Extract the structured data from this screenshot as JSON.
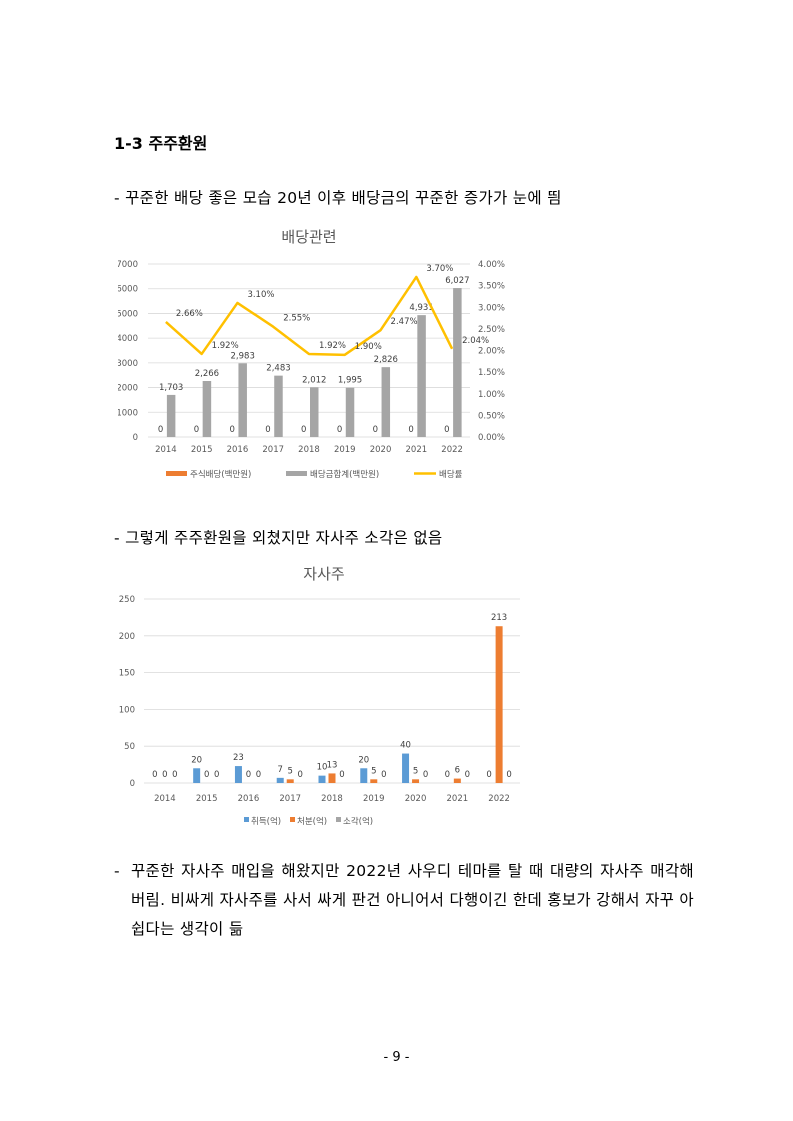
{
  "section_heading": "1-3 주주환원",
  "paragraphs": {
    "p1": "- 꾸준한 배당 좋은 모습 20년 이후 배당금의 꾸준한 증가가 눈에 띔",
    "p2": "- 그렇게 주주환원을 외쳤지만 자사주 소각은 없음",
    "p3_bullet": "-",
    "p3": "꾸준한 자사주 매입을 해왔지만 2022년 사우디 테마를 탈 때 대량의 자사주 매각해버림. 비싸게 자사주를 사서 싸게 판건 아니어서 다행이긴 한데 홍보가 강해서 자꾸 아쉽다는 생각이 듦"
  },
  "page_number": "- 9 -",
  "chart_data": [
    {
      "type": "bar",
      "title": "배당관련",
      "categories": [
        "2014",
        "2015",
        "2016",
        "2017",
        "2018",
        "2019",
        "2020",
        "2021",
        "2022"
      ],
      "ylim": [
        0,
        7000
      ],
      "y_ticks": [
        "0",
        "1000",
        "2000",
        "3000",
        "4000",
        "5000",
        "6000",
        "7000"
      ],
      "y2lim": [
        0,
        4
      ],
      "y2_ticks": [
        "0.00%",
        "0.50%",
        "1.00%",
        "1.50%",
        "2.00%",
        "2.50%",
        "3.00%",
        "3.50%",
        "4.00%"
      ],
      "grid": true,
      "legend_position": "bottom",
      "series": [
        {
          "name": "주식배당(백만원)",
          "type": "bar",
          "color": "#ed7d31",
          "values": [
            0,
            0,
            0,
            0,
            0,
            0,
            0,
            0,
            0
          ],
          "labels": [
            "0",
            "0",
            "0",
            "0",
            "0",
            "0",
            "0",
            "0",
            "0"
          ]
        },
        {
          "name": "배당금합계(백만원)",
          "type": "bar",
          "color": "#a5a5a5",
          "values": [
            1703,
            2266,
            2983,
            2483,
            2012,
            1995,
            2826,
            4931,
            6027
          ],
          "labels": [
            "1,703",
            "2,266",
            "2,983",
            "2,483",
            "2,012",
            "1,995",
            "2,826",
            "4,931",
            "6,027"
          ]
        },
        {
          "name": "배당률",
          "type": "line",
          "axis": "secondary",
          "color": "#ffc000",
          "values": [
            2.66,
            1.92,
            3.1,
            2.55,
            1.92,
            1.9,
            2.47,
            3.7,
            2.04
          ],
          "labels": [
            "2.66%",
            "1.92%",
            "3.10%",
            "2.55%",
            "1.92%",
            "1.90%",
            "2.47%",
            "3.70%",
            "2.04%"
          ]
        }
      ]
    },
    {
      "type": "bar",
      "title": "자사주",
      "categories": [
        "2014",
        "2015",
        "2016",
        "2017",
        "2018",
        "2019",
        "2020",
        "2021",
        "2022"
      ],
      "ylim": [
        0,
        250
      ],
      "y_ticks": [
        "0",
        "50",
        "100",
        "150",
        "200",
        "250"
      ],
      "grid": true,
      "legend_position": "bottom",
      "series": [
        {
          "name": "취득(억)",
          "color": "#5b9bd5",
          "values": [
            0,
            20,
            23,
            7,
            10,
            20,
            40,
            0,
            0
          ],
          "labels": [
            "0",
            "20",
            "23",
            "7",
            "10",
            "20",
            "40",
            "0",
            "0"
          ]
        },
        {
          "name": "처분(억)",
          "color": "#ed7d31",
          "values": [
            0,
            0,
            0,
            5,
            13,
            5,
            5,
            6,
            213
          ],
          "labels": [
            "0",
            "0",
            "0",
            "5",
            "13",
            "5",
            "5",
            "6",
            "213"
          ]
        },
        {
          "name": "소각(억)",
          "color": "#a5a5a5",
          "values": [
            0,
            0,
            0,
            0,
            0,
            0,
            0,
            0,
            0
          ],
          "labels": [
            "0",
            "0",
            "0",
            "0",
            "0",
            "0",
            "0",
            "0",
            "0"
          ]
        }
      ]
    }
  ]
}
